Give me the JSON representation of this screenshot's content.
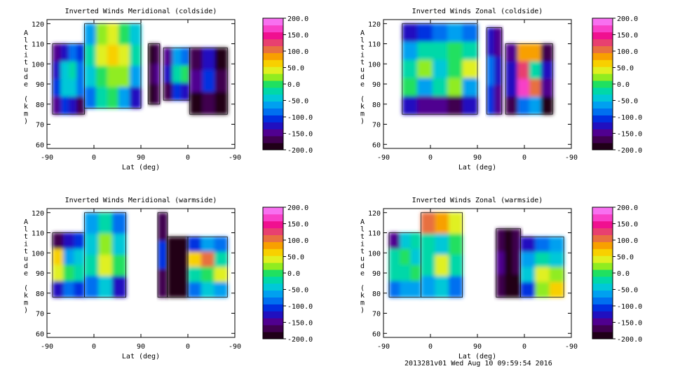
{
  "footer_text": "2013281v01 Wed Aug 10 09:59:54 2016",
  "colorbar": {
    "ticks": [
      "200.0",
      "150.0",
      "100.0",
      "50.0",
      "0.0",
      "-50.0",
      "-100.0",
      "-150.0",
      "-200.0"
    ],
    "range": [
      -200,
      200
    ],
    "colors": [
      "#200018",
      "#400050",
      "#500090",
      "#2010c0",
      "#0030e0",
      "#0070f0",
      "#00a0f0",
      "#00c8d8",
      "#00d8a8",
      "#20e060",
      "#90ec20",
      "#e0f020",
      "#f8d000",
      "#f8a000",
      "#e87040",
      "#e84070",
      "#f01090",
      "#f840c8",
      "#f870f0"
    ]
  },
  "chart_data": [
    {
      "type": "heatmap",
      "title": "Inverted Winds Meridional (coldside)",
      "xlabel": "Lat (deg)",
      "ylabel": "Altitude (km)",
      "xticks": [
        "-90",
        "0",
        "90",
        "0",
        "-90"
      ],
      "yticks": [
        "60",
        "70",
        "80",
        "90",
        "100",
        "110",
        "120"
      ],
      "ylim": [
        58,
        122
      ],
      "zlim": [
        -200,
        200
      ],
      "segments": [
        {
          "from": 0.03,
          "to": 0.2,
          "alt": [
            75,
            110
          ],
          "cells": [
            [
              -150,
              -120,
              -90,
              -110
            ],
            [
              -120,
              -40,
              -20,
              -80
            ],
            [
              -100,
              -50,
              -40,
              -90
            ],
            [
              -150,
              -100,
              -120,
              -160
            ]
          ]
        },
        {
          "from": 0.2,
          "to": 0.5,
          "alt": [
            78,
            120
          ],
          "cells": [
            [
              -60,
              20,
              40,
              10,
              -50
            ],
            [
              -20,
              40,
              60,
              40,
              -30
            ],
            [
              -40,
              10,
              30,
              20,
              -60
            ],
            [
              -80,
              -20,
              -10,
              -60,
              -120
            ]
          ]
        },
        {
          "from": 0.54,
          "to": 0.6,
          "alt": [
            80,
            110
          ],
          "cells": [
            [
              -180,
              -160
            ],
            [
              -160,
              -150
            ],
            [
              -180,
              -170
            ]
          ]
        },
        {
          "from": 0.62,
          "to": 0.76,
          "alt": [
            82,
            108
          ],
          "cells": [
            [
              -150,
              -60,
              -80
            ],
            [
              -120,
              -30,
              0
            ],
            [
              -160,
              -100,
              -120
            ]
          ]
        },
        {
          "from": 0.76,
          "to": 0.96,
          "alt": [
            75,
            108
          ],
          "cells": [
            [
              -160,
              -130,
              -190
            ],
            [
              -140,
              -100,
              -170
            ],
            [
              -180,
              -160,
              -200
            ]
          ]
        }
      ]
    },
    {
      "type": "heatmap",
      "title": "Inverted Winds Zonal (coldside)",
      "xlabel": "Lat (deg)",
      "ylabel": "Altitude (km)",
      "xticks": [
        "-90",
        "0",
        "90",
        "0",
        "-90"
      ],
      "yticks": [
        "60",
        "70",
        "80",
        "90",
        "100",
        "110",
        "120"
      ],
      "ylim": [
        58,
        122
      ],
      "zlim": [
        -200,
        200
      ],
      "segments": [
        {
          "from": 0.1,
          "to": 0.5,
          "alt": [
            75,
            120
          ],
          "cells": [
            [
              -130,
              -100,
              -80,
              -60,
              -90
            ],
            [
              -60,
              -30,
              -20,
              10,
              -30
            ],
            [
              -20,
              20,
              -40,
              10,
              50
            ],
            [
              -10,
              -60,
              -30,
              30,
              -60
            ],
            [
              -130,
              -150,
              -140,
              -170,
              -120
            ]
          ]
        },
        {
          "from": 0.55,
          "to": 0.63,
          "alt": [
            75,
            118
          ],
          "cells": [
            [
              -120,
              -150
            ],
            [
              -90,
              -130
            ],
            [
              -100,
              -150
            ]
          ]
        },
        {
          "from": 0.65,
          "to": 0.9,
          "alt": [
            75,
            110
          ],
          "cells": [
            [
              -140,
              80,
              90,
              -160
            ],
            [
              -120,
              120,
              -30,
              -120
            ],
            [
              -130,
              160,
              100,
              -140
            ],
            [
              -170,
              -80,
              -60,
              -180
            ]
          ]
        }
      ]
    },
    {
      "type": "heatmap",
      "title": "Inverted Winds Meridional (warmside)",
      "xlabel": "Lat (deg)",
      "ylabel": "Altitude (km)",
      "xticks": [
        "-90",
        "0",
        "90",
        "0",
        "-90"
      ],
      "yticks": [
        "60",
        "70",
        "80",
        "90",
        "100",
        "110",
        "120"
      ],
      "ylim": [
        58,
        122
      ],
      "zlim": [
        -200,
        200
      ],
      "segments": [
        {
          "from": 0.03,
          "to": 0.2,
          "alt": [
            78,
            110
          ],
          "cells": [
            [
              -160,
              -120,
              -100
            ],
            [
              70,
              -60,
              -40
            ],
            [
              40,
              0,
              -30
            ],
            [
              -120,
              -80,
              -110
            ]
          ]
        },
        {
          "from": 0.2,
          "to": 0.42,
          "alt": [
            78,
            120
          ],
          "cells": [
            [
              -60,
              -30,
              -80
            ],
            [
              -50,
              20,
              -40
            ],
            [
              -20,
              50,
              10
            ],
            [
              -90,
              -50,
              -120
            ]
          ]
        },
        {
          "from": 0.59,
          "to": 0.64,
          "alt": [
            78,
            120
          ],
          "cells": [
            [
              -170
            ],
            [
              -100
            ],
            [
              -160
            ]
          ]
        },
        {
          "from": 0.64,
          "to": 0.75,
          "alt": [
            78,
            108
          ],
          "cells": [
            [
              -200,
              -180,
              -200
            ],
            [
              -200,
              -190,
              -200
            ]
          ]
        },
        {
          "from": 0.75,
          "to": 0.96,
          "alt": [
            78,
            108
          ],
          "cells": [
            [
              -100,
              -60,
              -90
            ],
            [
              60,
              100,
              -20
            ],
            [
              -20,
              0,
              50
            ],
            [
              -90,
              -40,
              -70
            ]
          ]
        }
      ]
    },
    {
      "type": "heatmap",
      "title": "Inverted Winds Zonal (warmside)",
      "xlabel": "Lat (deg)",
      "ylabel": "Altitude (km)",
      "xticks": [
        "-90",
        "0",
        "90",
        "0",
        "-90"
      ],
      "yticks": [
        "60",
        "70",
        "80",
        "90",
        "100",
        "110",
        "120"
      ],
      "ylim": [
        58,
        122
      ],
      "zlim": [
        -200,
        200
      ],
      "segments": [
        {
          "from": 0.03,
          "to": 0.2,
          "alt": [
            78,
            110
          ],
          "cells": [
            [
              -140,
              -40,
              -20
            ],
            [
              -30,
              -10,
              -40
            ],
            [
              -20,
              -30,
              -10
            ],
            [
              -80,
              -60,
              -70
            ]
          ]
        },
        {
          "from": 0.2,
          "to": 0.42,
          "alt": [
            78,
            120
          ],
          "cells": [
            [
              100,
              80,
              40
            ],
            [
              -20,
              -50,
              10
            ],
            [
              -30,
              40,
              -30
            ],
            [
              -70,
              -40,
              -90
            ]
          ]
        },
        {
          "from": 0.6,
          "to": 0.73,
          "alt": [
            78,
            112
          ],
          "cells": [
            [
              -170,
              -180,
              -160
            ],
            [
              -150,
              -200,
              -170
            ],
            [
              -170,
              -180,
              -190
            ]
          ]
        },
        {
          "from": 0.73,
          "to": 0.96,
          "alt": [
            78,
            108
          ],
          "cells": [
            [
              -120,
              -80,
              -60
            ],
            [
              -60,
              -20,
              -40
            ],
            [
              -40,
              40,
              30
            ],
            [
              -110,
              20,
              60
            ]
          ]
        }
      ]
    }
  ]
}
